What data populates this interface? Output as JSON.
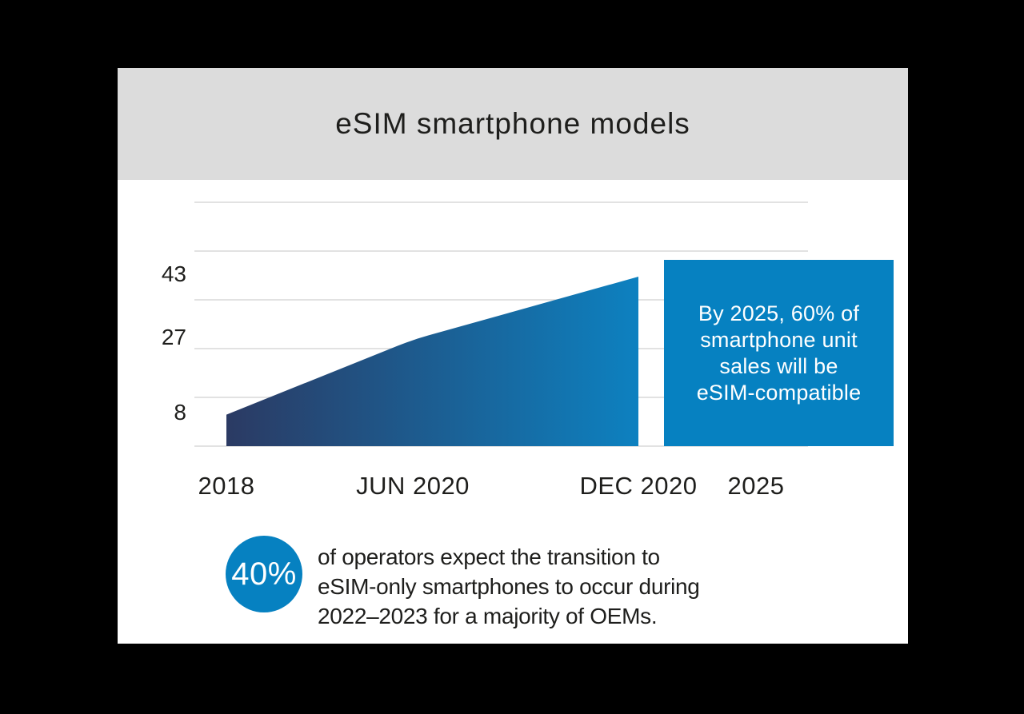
{
  "title": "eSIM smartphone models",
  "chart_data": {
    "type": "area",
    "title": "eSIM smartphone models",
    "categories": [
      "2018",
      "JUN 2020",
      "DEC 2020"
    ],
    "values": [
      8,
      27,
      43
    ],
    "x_tick_labels": [
      "2018",
      "JUN 2020",
      "DEC 2020",
      "2025"
    ],
    "y_tick_labels": [
      "43",
      "27",
      "8"
    ],
    "ylim": [
      0,
      65
    ],
    "grid": "horizontal",
    "legend": "none",
    "annotation_box": {
      "lines": [
        "By 2025, 60% of",
        "smartphone unit",
        "sales will be",
        "eSIM-compatible"
      ]
    }
  },
  "footnote": {
    "stat": "40%",
    "lines": [
      "of operators expect the transition to",
      "eSIM-only smartphones to occur during",
      "2022–2023 for a majority of OEMs."
    ]
  },
  "colors": {
    "background": "#000000",
    "card": "#ffffff",
    "header_band": "#dcdcdc",
    "text": "#1e1e1c",
    "gridline": "#d9d9d9",
    "area_gradient_start": "#2b3a63",
    "area_gradient_end": "#0d81c0",
    "accent_blue": "#0681c1",
    "callout_text": "#ffffff"
  }
}
